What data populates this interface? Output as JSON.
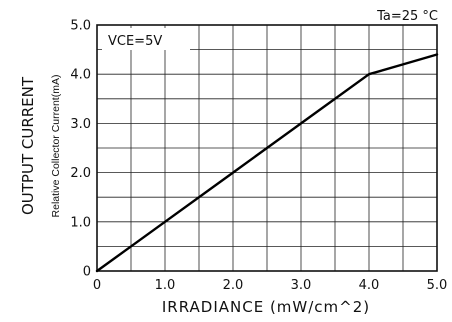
{
  "chart_data": {
    "type": "line",
    "xlabel": "IRRADIANCE (mW/cm^2)",
    "ylabel": "OUTPUT CURRENT",
    "ylabel_sub": "Relative Collector Current(mA)",
    "xlim": [
      0,
      5.0
    ],
    "ylim": [
      0,
      5.0
    ],
    "x_ticks": [
      0,
      1.0,
      2.0,
      3.0,
      4.0,
      5.0
    ],
    "x_tick_labels": [
      "0",
      "1.0",
      "2.0",
      "3.0",
      "4.0",
      "5.0"
    ],
    "y_ticks": [
      0,
      1.0,
      2.0,
      3.0,
      4.0,
      5.0
    ],
    "y_tick_labels": [
      "0",
      "1.0",
      "2.0",
      "3.0",
      "4.0",
      "5.0"
    ],
    "grid": true,
    "grid_step": 0.5,
    "annotations": [
      {
        "text": "VCE=5V",
        "placement": "inside-top-left"
      },
      {
        "text": "Ta=25 °C",
        "placement": "above-top-right"
      }
    ],
    "series": [
      {
        "color": "#000000",
        "x": [
          0,
          1.0,
          2.0,
          3.0,
          4.0,
          4.5,
          5.0
        ],
        "y": [
          0,
          1.0,
          2.0,
          3.0,
          4.0,
          4.2,
          4.4
        ]
      }
    ]
  }
}
